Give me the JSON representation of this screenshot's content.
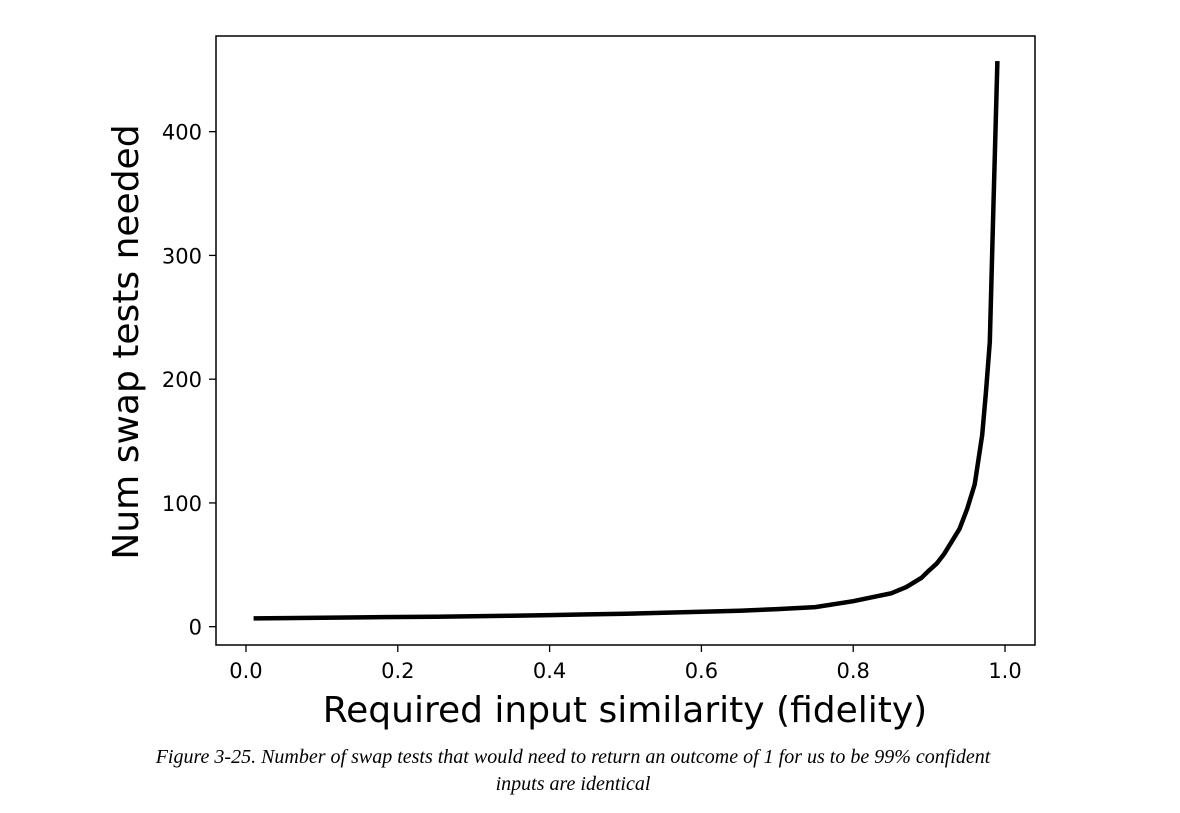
{
  "chart_data": {
    "type": "line",
    "title": "",
    "xlabel": "Required input similarity (fidelity)",
    "ylabel": "Num swap tests needed",
    "xlim": [
      -0.0395,
      1.0395
    ],
    "ylim": [
      -14.8,
      477.3
    ],
    "xticks": [
      0.0,
      0.2,
      0.4,
      0.6,
      0.8,
      1.0
    ],
    "xtick_labels": [
      "0.0",
      "0.2",
      "0.4",
      "0.6",
      "0.8",
      "1.0"
    ],
    "yticks": [
      0,
      100,
      200,
      300,
      400
    ],
    "ytick_labels": [
      "0",
      "100",
      "200",
      "300",
      "400"
    ],
    "grid": false,
    "line_color": "#000000",
    "series": [
      {
        "x": [
          0.01,
          0.05,
          0.1,
          0.15,
          0.2,
          0.25,
          0.3,
          0.35,
          0.4,
          0.45,
          0.5,
          0.55,
          0.6,
          0.65,
          0.7,
          0.75,
          0.8,
          0.83,
          0.85,
          0.87,
          0.89,
          0.9,
          0.91,
          0.92,
          0.93,
          0.94,
          0.95,
          0.96,
          0.97,
          0.975,
          0.98,
          0.985,
          0.99
        ],
        "y": [
          6.7,
          6.9,
          7.2,
          7.5,
          7.8,
          8.1,
          8.5,
          8.9,
          9.4,
          9.9,
          10.5,
          11.2,
          12.0,
          12.9,
          14.2,
          15.8,
          20.6,
          24.5,
          27.0,
          32.0,
          39.5,
          45.5,
          51.0,
          59.0,
          69.0,
          79.0,
          95.0,
          115.0,
          155.0,
          190.0,
          230.0,
          345.0,
          457.0
        ]
      }
    ]
  },
  "caption": {
    "line1": "Figure 3-25. Number of swap tests that would need to return an outcome of 1 for us to be 99% confident",
    "line2": "inputs are identical"
  }
}
